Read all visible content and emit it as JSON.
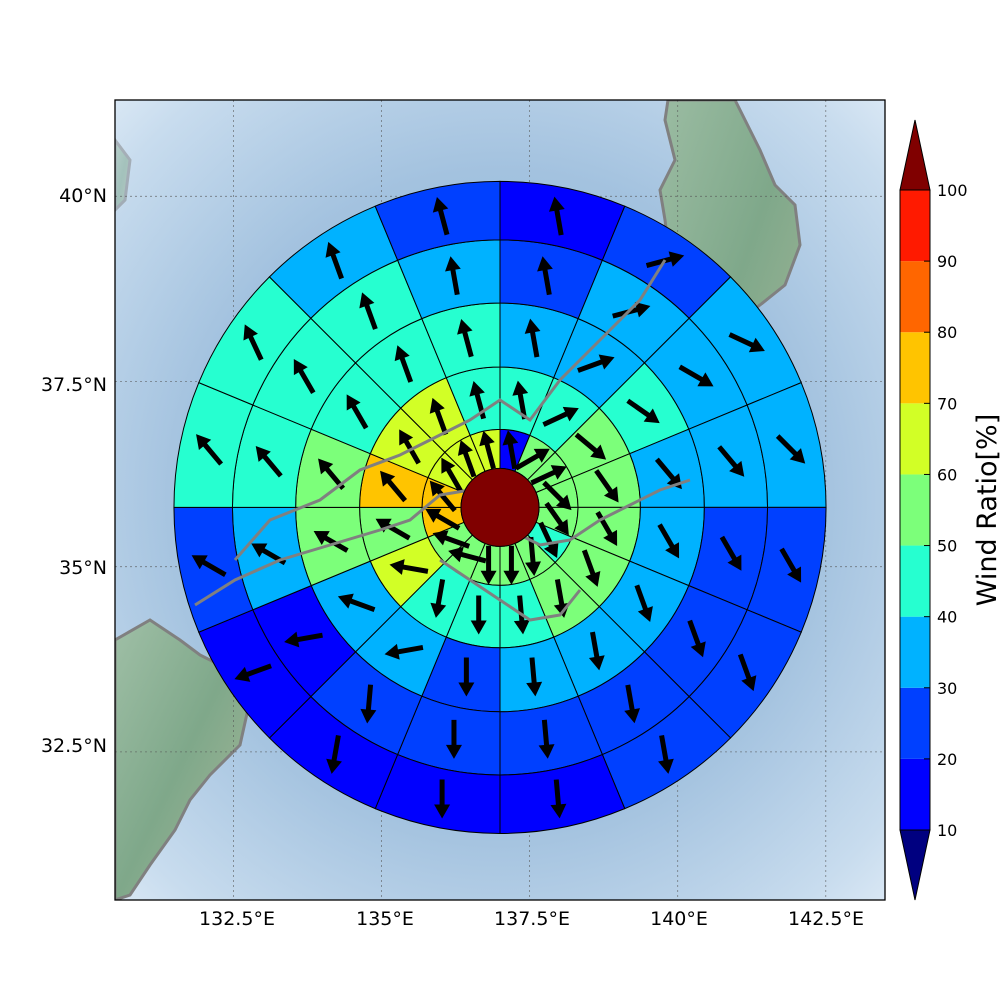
{
  "map": {
    "lat_ticks": [
      "40°N",
      "37.5°N",
      "35°N",
      "32.5°N"
    ],
    "lon_ticks": [
      "132.5°E",
      "135°E",
      "137.5°E",
      "140°E",
      "142.5°E"
    ],
    "lat_tick_values": [
      40,
      37.5,
      35,
      32.5
    ],
    "lon_tick_values": [
      132.5,
      135,
      137.5,
      140,
      142.5
    ],
    "lon_range": [
      130.5,
      143.5
    ],
    "lat_range": [
      30.5,
      41.3
    ],
    "grid": true,
    "center": {
      "lon": 137,
      "lat": 35.8
    }
  },
  "colorbar": {
    "title": "Wind Ratio[%]",
    "tick_labels": [
      "10",
      "20",
      "30",
      "40",
      "50",
      "60",
      "70",
      "80",
      "90",
      "100"
    ],
    "levels": [
      10,
      20,
      30,
      40,
      50,
      60,
      70,
      80,
      90,
      100
    ],
    "colors": [
      "#0000ff",
      "#0040ff",
      "#00b2ff",
      "#26ffd0",
      "#7cff7a",
      "#d2ff26",
      "#ffc400",
      "#ff6600",
      "#ff1a00"
    ],
    "under_color": "#000080",
    "over_color": "#800000",
    "extend": "both"
  },
  "chart_data": {
    "type": "polar_sector_field",
    "units": "%",
    "sector_bearings_deg": [
      0,
      22.5,
      45,
      67.5,
      90,
      112.5,
      135,
      157.5,
      180,
      202.5,
      225,
      247.5,
      270,
      292.5,
      315,
      337.5
    ],
    "central_disk_value": 100,
    "rings": [
      {
        "values": [
          15,
          55,
          55,
          55,
          55,
          45,
          55,
          55,
          55,
          55,
          55,
          75,
          75,
          65,
          65,
          65
        ],
        "arrows": [
          350,
          60,
          65,
          135,
          145,
          155,
          175,
          180,
          180,
          285,
          290,
          300,
          320,
          330,
          340,
          345
        ]
      },
      {
        "values": [
          45,
          45,
          55,
          55,
          55,
          55,
          55,
          45,
          45,
          45,
          65,
          55,
          75,
          65,
          65,
          45
        ],
        "arrows": [
          350,
          65,
          130,
          145,
          150,
          160,
          170,
          175,
          180,
          190,
          280,
          300,
          320,
          330,
          340,
          345
        ]
      },
      {
        "values": [
          35,
          35,
          45,
          35,
          35,
          35,
          35,
          35,
          25,
          35,
          35,
          55,
          55,
          45,
          45,
          45
        ],
        "arrows": [
          350,
          70,
          125,
          140,
          150,
          160,
          170,
          175,
          180,
          260,
          290,
          300,
          320,
          330,
          340,
          345
        ]
      },
      {
        "values": [
          25,
          35,
          35,
          35,
          25,
          25,
          25,
          25,
          25,
          25,
          15,
          35,
          45,
          45,
          45,
          35
        ],
        "arrows": [
          350,
          75,
          120,
          140,
          150,
          160,
          170,
          175,
          180,
          185,
          260,
          300,
          320,
          330,
          340,
          350
        ]
      },
      {
        "values": [
          15,
          25,
          35,
          35,
          25,
          25,
          25,
          15,
          15,
          15,
          15,
          25,
          45,
          45,
          35,
          25
        ],
        "arrows": [
          350,
          75,
          115,
          135,
          150,
          160,
          170,
          175,
          180,
          190,
          250,
          300,
          320,
          335,
          340,
          345
        ]
      }
    ]
  }
}
